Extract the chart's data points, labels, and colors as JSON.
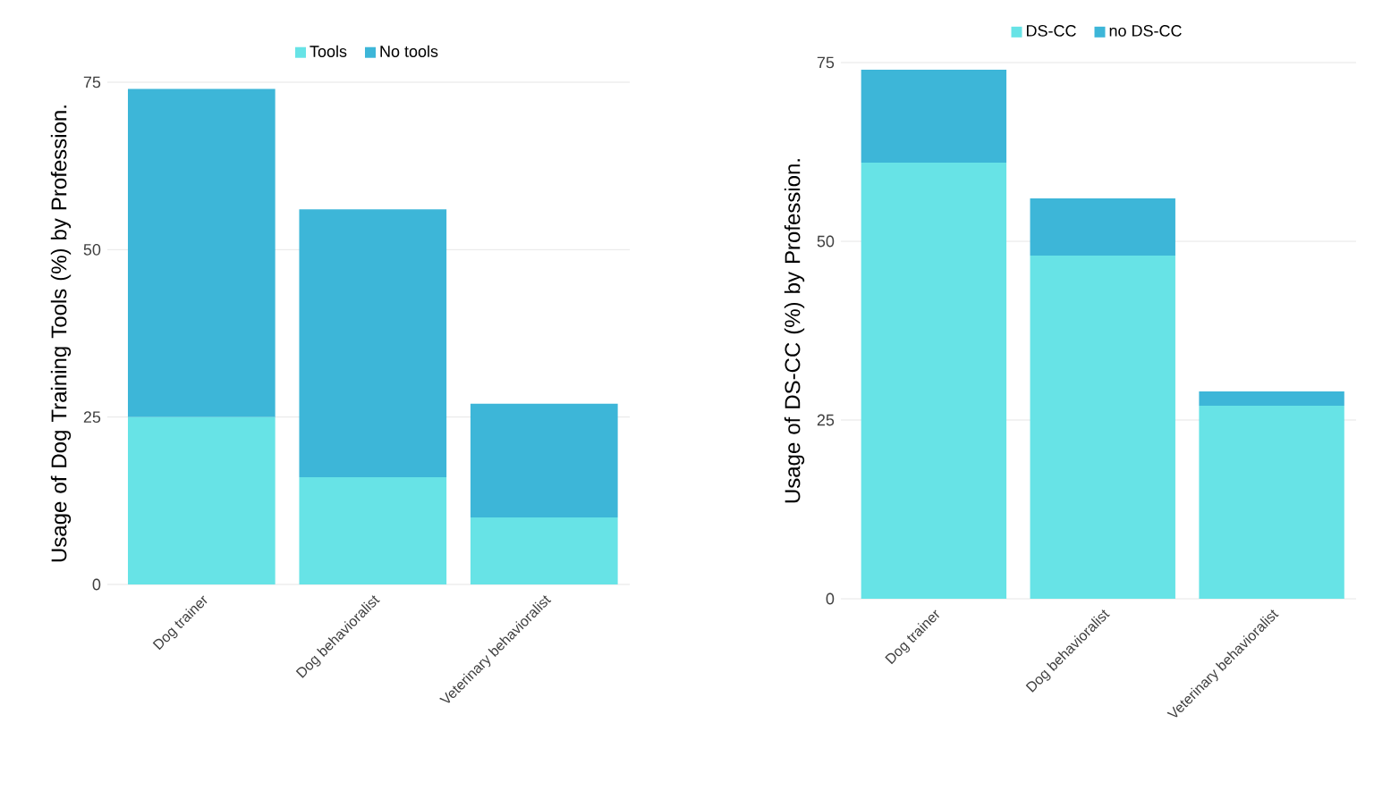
{
  "chart_data": [
    {
      "type": "bar",
      "stacked": true,
      "ylabel": "Usage of Dog Training Tools (%) by Profession.",
      "categories": [
        "Dog trainer",
        "Dog behavioralist",
        "Veterinary behavioralist"
      ],
      "series": [
        {
          "name": "Tools",
          "color": "#67e3e6",
          "values": [
            25,
            16,
            10
          ]
        },
        {
          "name": "No tools",
          "color": "#3db6d8",
          "values": [
            49,
            40,
            17
          ]
        }
      ],
      "ylim": [
        0,
        75
      ],
      "yticks": [
        0,
        25,
        50,
        75
      ],
      "grid": "y",
      "legend": "top"
    },
    {
      "type": "bar",
      "stacked": true,
      "ylabel": "Usage of DS-CC (%) by Profession.",
      "categories": [
        "Dog trainer",
        "Dog behavioralist",
        "Veterinary behavioralist"
      ],
      "series": [
        {
          "name": "DS-CC",
          "color": "#67e3e6",
          "values": [
            61,
            48,
            27
          ]
        },
        {
          "name": "no DS-CC",
          "color": "#3db6d8",
          "values": [
            13,
            8,
            2
          ]
        }
      ],
      "ylim": [
        0,
        75
      ],
      "yticks": [
        0,
        25,
        50,
        75
      ],
      "grid": "y",
      "legend": "top"
    }
  ]
}
